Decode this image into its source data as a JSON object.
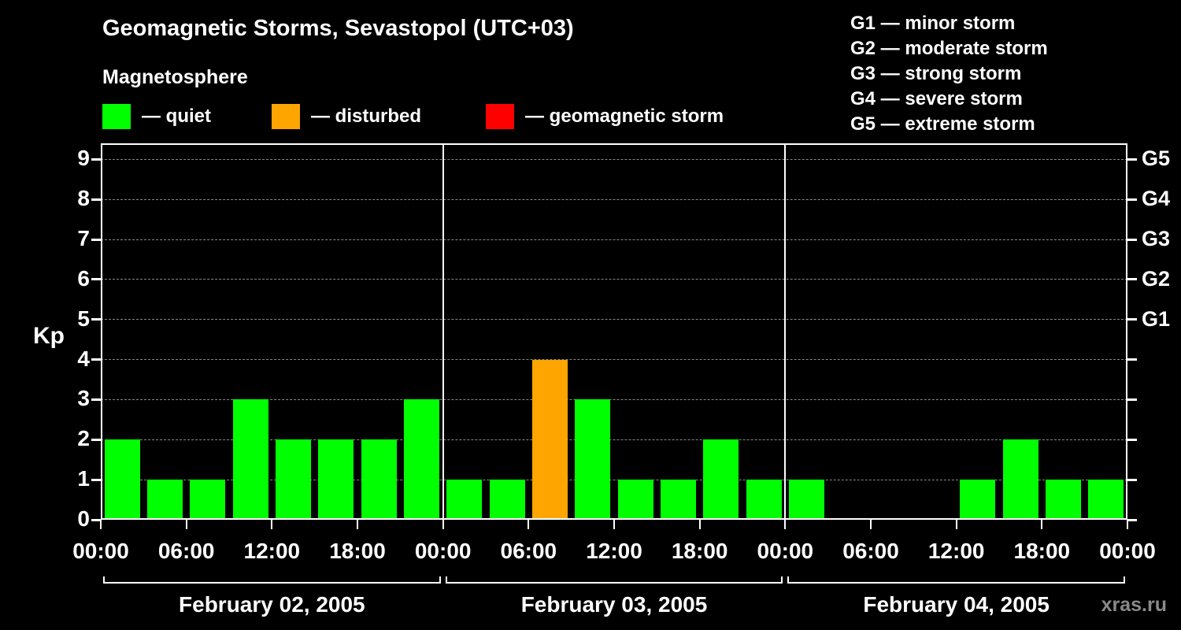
{
  "title": "Geomagnetic Storms, Sevastopol (UTC+03)",
  "subtitle": "Magnetosphere",
  "legend": {
    "items": [
      {
        "label": "— quiet",
        "color": "#00ff00"
      },
      {
        "label": "— disturbed",
        "color": "#ffa500"
      },
      {
        "label": "— geomagnetic storm",
        "color": "#ff0000"
      }
    ]
  },
  "g_legend": {
    "lines": [
      "G1 — minor storm",
      "G2 — moderate storm",
      "G3 — strong storm",
      "G4 — severe storm",
      "G5 — extreme storm"
    ]
  },
  "watermark": "xras.ru",
  "chart_data": {
    "type": "bar",
    "title": "Geomagnetic Storms, Sevastopol (UTC+03)",
    "xlabel": "",
    "ylabel": "Kp",
    "ylim": [
      0,
      9.4
    ],
    "y_ticks": [
      0,
      1,
      2,
      3,
      4,
      5,
      6,
      7,
      8,
      9
    ],
    "right_axis": [
      {
        "label": "G1",
        "kp": 5
      },
      {
        "label": "G2",
        "kp": 6
      },
      {
        "label": "G3",
        "kp": 7
      },
      {
        "label": "G4",
        "kp": 8
      },
      {
        "label": "G5",
        "kp": 9
      }
    ],
    "x_tick_labels": [
      "00:00",
      "06:00",
      "12:00",
      "18:00",
      "00:00",
      "06:00",
      "12:00",
      "18:00",
      "00:00",
      "06:00",
      "12:00",
      "18:00",
      "00:00"
    ],
    "bar_interval_hours": 3,
    "grid": true,
    "legend_position": "top",
    "days": [
      {
        "date": "February 02, 2005",
        "kp_values": [
          2,
          1,
          1,
          3,
          2,
          2,
          2,
          3
        ]
      },
      {
        "date": "February 03, 2005",
        "kp_values": [
          1,
          1,
          4,
          3,
          1,
          1,
          2,
          1
        ]
      },
      {
        "date": "February 04, 2005",
        "kp_values": [
          1,
          0,
          0,
          0,
          1,
          2,
          1,
          1
        ]
      }
    ],
    "colors": {
      "quiet": "#00ff00",
      "disturbed": "#ffa500",
      "storm": "#ff0000",
      "background": "#000000",
      "grid": "#8a8a8a",
      "axis": "#ffffff"
    },
    "color_rule": {
      "quiet_max": 3,
      "disturbed": 4,
      "storm_min": 5
    }
  }
}
